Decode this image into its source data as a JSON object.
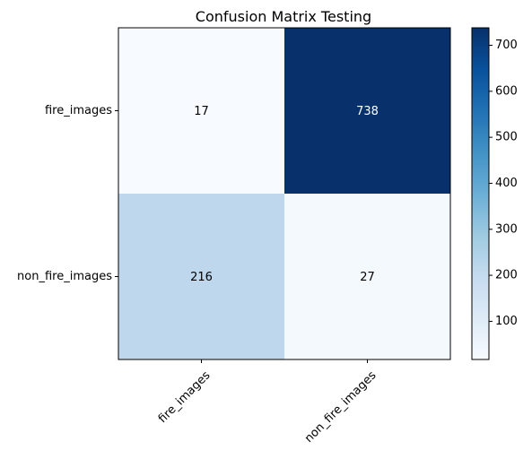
{
  "chart_data": {
    "type": "heatmap",
    "title": "Confusion Matrix Testing",
    "xlabel": "",
    "ylabel": "",
    "x_categories": [
      "fire_images",
      "non_fire_images"
    ],
    "y_categories": [
      "fire_images",
      "non_fire_images"
    ],
    "values": [
      [
        17,
        738
      ],
      [
        216,
        27
      ]
    ],
    "colormap": "Blues",
    "colorbar": {
      "range": [
        17,
        738
      ],
      "ticks": [
        100,
        200,
        300,
        400,
        500,
        600,
        700
      ]
    },
    "colors": {
      "low": "#f7fbff",
      "high": "#08306b",
      "text_on_light": "#000000",
      "text_on_dark": "#ffffff"
    },
    "grid": false
  }
}
